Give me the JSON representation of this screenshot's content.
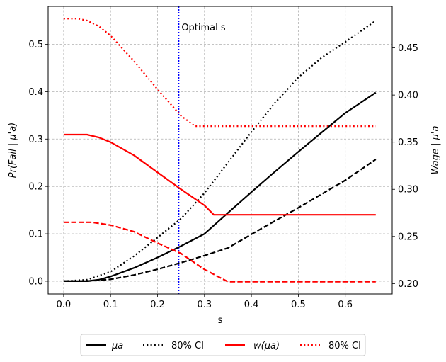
{
  "chart_data": {
    "type": "line",
    "xlabel": "s",
    "ylabel_left": "Pr(Fail | μ'a)",
    "ylabel_right": "Wage | μ'a",
    "x_ticks": [
      "0.0",
      "0.1",
      "0.2",
      "0.3",
      "0.4",
      "0.5",
      "0.6"
    ],
    "y_left_ticks": [
      "0.0",
      "0.1",
      "0.2",
      "0.3",
      "0.4",
      "0.5"
    ],
    "y_right_ticks": [
      "0.20",
      "0.25",
      "0.30",
      "0.35",
      "0.40",
      "0.45"
    ],
    "xlim": [
      -0.033,
      0.7
    ],
    "ylim_left": [
      -0.027,
      0.58
    ],
    "ylim_right": [
      0.189,
      0.494
    ],
    "grid": true,
    "legend_position": "bottom-center",
    "annotation": {
      "text": "Optimal s",
      "x": 0.245
    },
    "optimal_s": 0.245,
    "series": [
      {
        "name": "μa",
        "label": "μ_a",
        "axis": "left",
        "color": "#000000",
        "style": "solid",
        "x": [
          0,
          0.05,
          0.075,
          0.1,
          0.15,
          0.2,
          0.25,
          0.3,
          0.35,
          0.4,
          0.45,
          0.5,
          0.55,
          0.6,
          0.665
        ],
        "y": [
          0,
          0,
          0.003,
          0.01,
          0.028,
          0.05,
          0.074,
          0.1,
          0.144,
          0.188,
          0.231,
          0.273,
          0.314,
          0.355,
          0.398
        ]
      },
      {
        "name": "80% CI (μa upper)",
        "label": "80% CI",
        "axis": "left",
        "color": "#000000",
        "style": "dotted",
        "x": [
          0,
          0.05,
          0.1,
          0.15,
          0.2,
          0.25,
          0.3,
          0.35,
          0.4,
          0.45,
          0.5,
          0.55,
          0.6,
          0.665
        ],
        "y": [
          0,
          0.003,
          0.02,
          0.053,
          0.092,
          0.132,
          0.186,
          0.25,
          0.315,
          0.376,
          0.43,
          0.472,
          0.505,
          0.55
        ]
      },
      {
        "name": "μa lower CI",
        "label": "",
        "axis": "left",
        "color": "#000000",
        "style": "dashed",
        "x": [
          0,
          0.05,
          0.1,
          0.15,
          0.2,
          0.25,
          0.3,
          0.35,
          0.4,
          0.45,
          0.5,
          0.55,
          0.6,
          0.665
        ],
        "y": [
          0,
          0,
          0.004,
          0.013,
          0.025,
          0.039,
          0.054,
          0.07,
          0.099,
          0.127,
          0.155,
          0.184,
          0.213,
          0.257
        ]
      },
      {
        "name": "w(μa)",
        "label": "w(μ_a)",
        "axis": "right",
        "color": "#ff0000",
        "style": "solid",
        "x": [
          0,
          0.05,
          0.075,
          0.1,
          0.15,
          0.2,
          0.25,
          0.3,
          0.32,
          0.35,
          0.4,
          0.5,
          0.6,
          0.665
        ],
        "y": [
          0.358,
          0.358,
          0.355,
          0.35,
          0.336,
          0.318,
          0.3,
          0.283,
          0.273,
          0.273,
          0.273,
          0.273,
          0.273,
          0.273
        ]
      },
      {
        "name": "80% CI (w upper)",
        "label": "80% CI",
        "axis": "right",
        "color": "#ff0000",
        "style": "dotted",
        "x": [
          0,
          0.03,
          0.05,
          0.075,
          0.1,
          0.15,
          0.2,
          0.25,
          0.28,
          0.3,
          0.35,
          0.4,
          0.5,
          0.6,
          0.665
        ],
        "y": [
          0.481,
          0.481,
          0.479,
          0.473,
          0.463,
          0.436,
          0.406,
          0.378,
          0.367,
          0.367,
          0.367,
          0.367,
          0.367,
          0.367,
          0.367
        ]
      },
      {
        "name": "w lower CI",
        "label": "",
        "axis": "right",
        "color": "#ff0000",
        "style": "dashed",
        "x": [
          0,
          0.06,
          0.1,
          0.15,
          0.2,
          0.25,
          0.3,
          0.35,
          0.4,
          0.5,
          0.6,
          0.665
        ],
        "y": [
          0.265,
          0.265,
          0.262,
          0.255,
          0.243,
          0.232,
          0.215,
          0.202,
          0.202,
          0.202,
          0.202,
          0.202
        ]
      }
    ],
    "legend": [
      {
        "label": "μa",
        "sub": "a",
        "base": "μ",
        "color": "#000000",
        "style": "solid"
      },
      {
        "label": "80% CI",
        "color": "#000000",
        "style": "dotted"
      },
      {
        "label": "w(μa)",
        "color": "#ff0000",
        "style": "solid"
      },
      {
        "label": "80% CI",
        "color": "#ff0000",
        "style": "dotted"
      }
    ]
  }
}
